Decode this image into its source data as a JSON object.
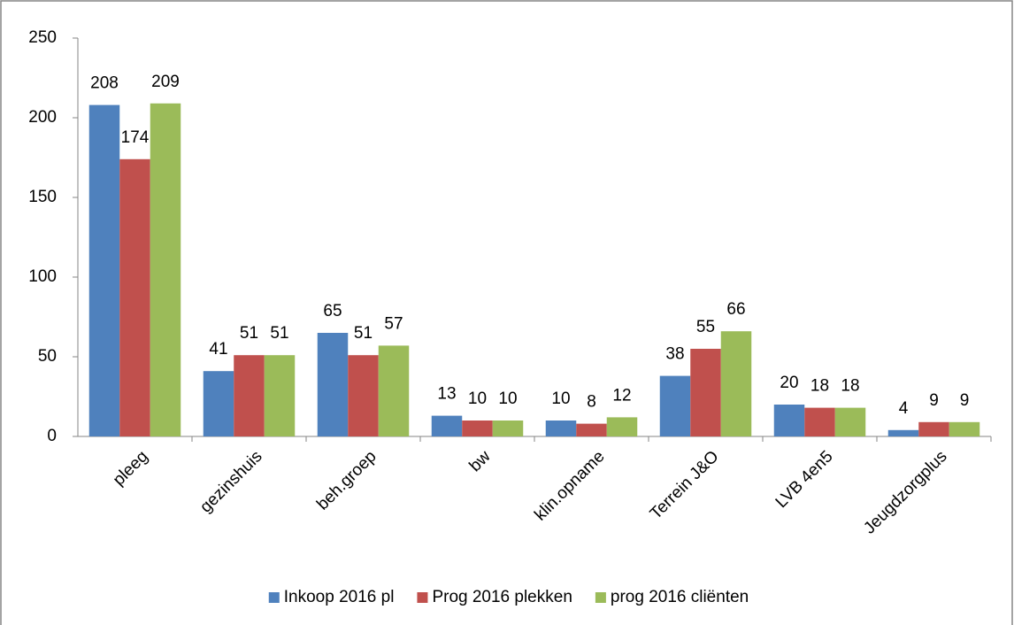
{
  "chart_data": {
    "type": "bar",
    "categories": [
      "pleeg",
      "gezinshuis",
      "beh.groep",
      "bw",
      "klin.opname",
      "Terrein J&O",
      "LVB 4en5",
      "Jeugdzorgplus"
    ],
    "series": [
      {
        "name": "Inkoop 2016 pl",
        "color": "#4f81bd",
        "values": [
          208,
          41,
          65,
          13,
          10,
          38,
          20,
          4
        ]
      },
      {
        "name": "Prog 2016 plekken",
        "color": "#c0504d",
        "values": [
          174,
          51,
          51,
          10,
          8,
          55,
          18,
          9
        ]
      },
      {
        "name": "prog 2016 cliënten",
        "color": "#9bbb59",
        "values": [
          209,
          51,
          57,
          10,
          12,
          66,
          18,
          9
        ]
      }
    ],
    "ylim": [
      0,
      250
    ],
    "yticks": [
      0,
      50,
      100,
      150,
      200,
      250
    ],
    "grid": false,
    "data_labels": true,
    "legend": "bottom"
  }
}
